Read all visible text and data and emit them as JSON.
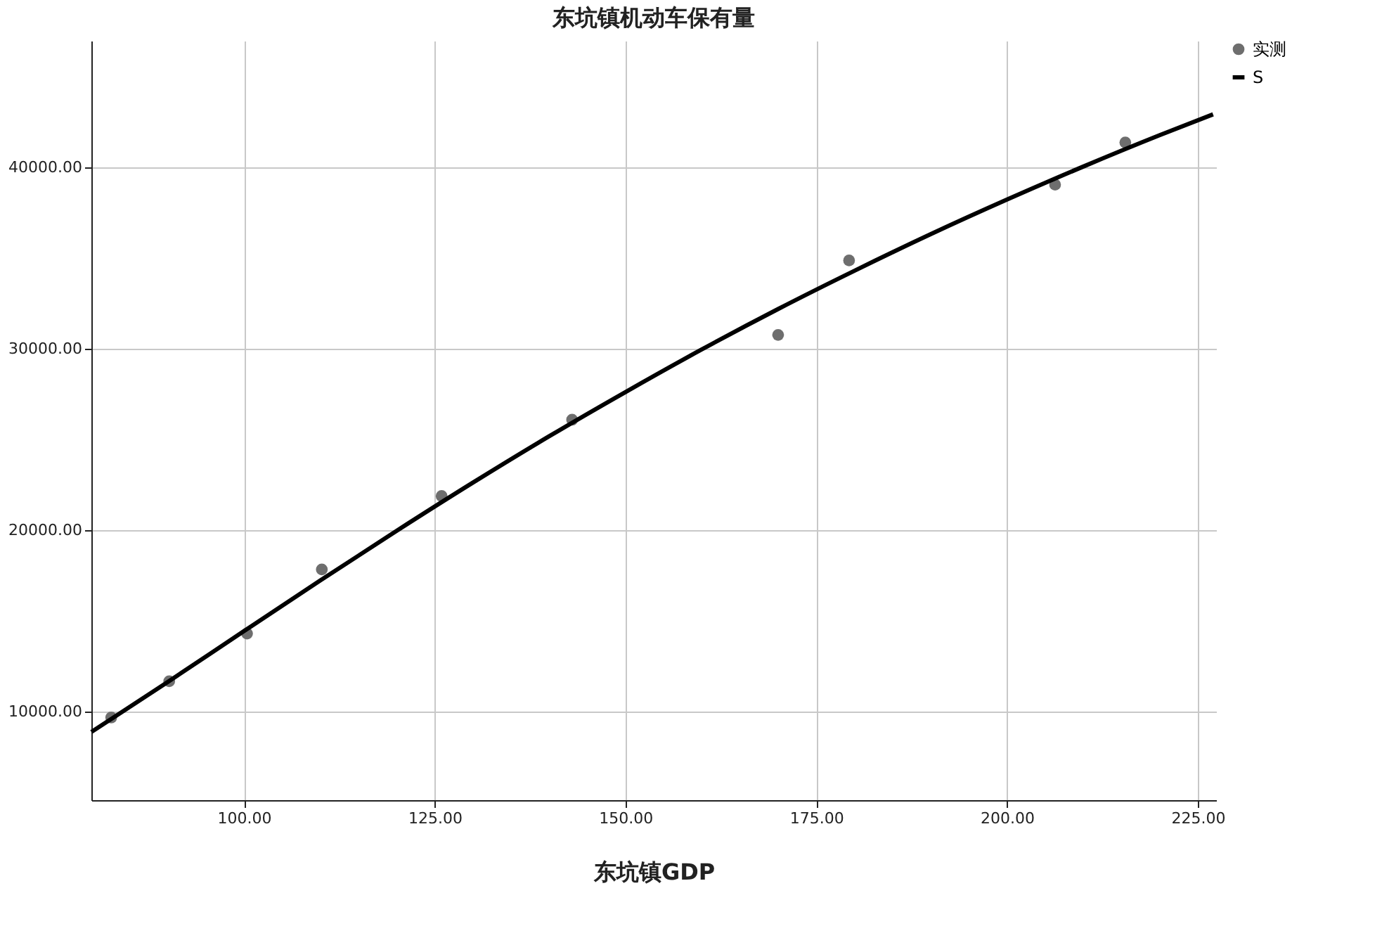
{
  "chart_data": {
    "type": "scatter",
    "title": "东坑镇机动车保有量",
    "xlabel": "东坑镇GDP",
    "xlim": [
      80,
      227.4
    ],
    "ylim": [
      5100,
      47000
    ],
    "xticks": [
      {
        "value": 100,
        "label": "100.00"
      },
      {
        "value": 125,
        "label": "125.00"
      },
      {
        "value": 150,
        "label": "150.00"
      },
      {
        "value": 175,
        "label": "175.00"
      },
      {
        "value": 200,
        "label": "200.00"
      },
      {
        "value": 225,
        "label": "225.00"
      }
    ],
    "yticks": [
      {
        "value": 10000,
        "label": "10000.00"
      },
      {
        "value": 20000,
        "label": "20000.00"
      },
      {
        "value": 30000,
        "label": "30000.00"
      },
      {
        "value": 40000,
        "label": "40000.00"
      }
    ],
    "grid": true,
    "legend": "top right",
    "series": [
      {
        "name": "实测",
        "marker": "circle",
        "color": "#6e6e6e",
        "x": [
          82.6,
          90.2,
          100.4,
          110.2,
          125.9,
          143.0,
          170.0,
          179.3,
          206.3,
          215.5
        ],
        "values": [
          9660,
          11660,
          14290,
          17830,
          21880,
          26090,
          30770,
          34880,
          39060,
          41390
        ]
      },
      {
        "name": "S",
        "type": "line",
        "color": "#000000",
        "line_style": "solid",
        "x": [
          80,
          90,
          100,
          110,
          120,
          130,
          140,
          150,
          160,
          170,
          180,
          190,
          200,
          210,
          220,
          227
        ],
        "values": [
          8860,
          11620,
          14430,
          17220,
          19960,
          22620,
          25180,
          27620,
          29970,
          32200,
          34310,
          36330,
          38240,
          40060,
          41790,
          42940
        ]
      }
    ]
  }
}
